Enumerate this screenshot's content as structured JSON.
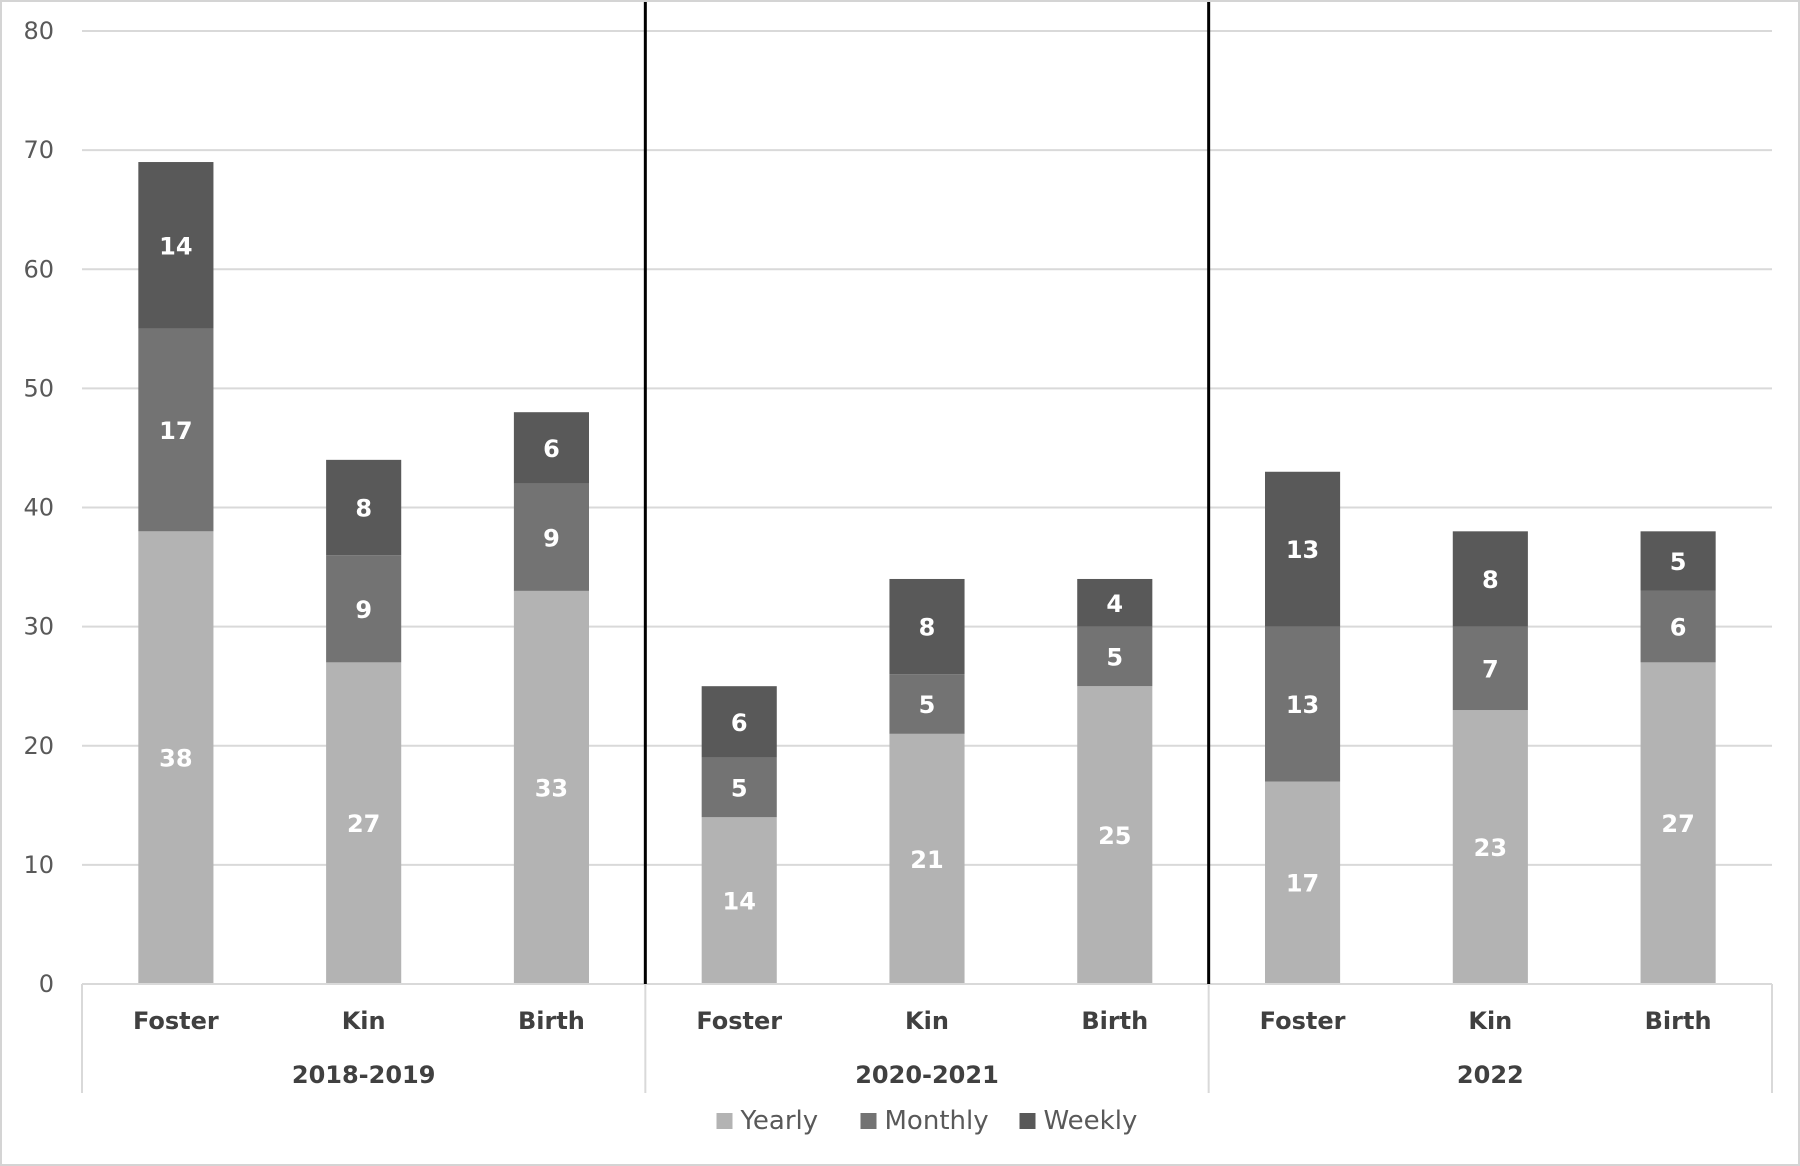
{
  "chart_data": {
    "type": "bar",
    "stacked": true,
    "groups": [
      {
        "label": "2018-2019",
        "categories": [
          "Foster",
          "Kin",
          "Birth"
        ]
      },
      {
        "label": "2020-2021",
        "categories": [
          "Foster",
          "Kin",
          "Birth"
        ]
      },
      {
        "label": "2022",
        "categories": [
          "Foster",
          "Kin",
          "Birth"
        ]
      }
    ],
    "series": [
      {
        "name": "Yearly",
        "color": "#b3b3b3",
        "values": [
          38,
          27,
          33,
          14,
          21,
          25,
          17,
          23,
          27
        ]
      },
      {
        "name": "Monthly",
        "color": "#737373",
        "values": [
          17,
          9,
          9,
          5,
          5,
          5,
          13,
          7,
          6
        ]
      },
      {
        "name": "Weekly",
        "color": "#595959",
        "values": [
          14,
          8,
          6,
          6,
          8,
          4,
          13,
          8,
          5
        ]
      }
    ],
    "ylim": [
      0,
      80
    ],
    "yticks": [
      0,
      10,
      20,
      30,
      40,
      50,
      60,
      70,
      80
    ],
    "grid": true,
    "legend": "bottom-center",
    "data_labels": true,
    "group_separators": "vertical lines between groups"
  }
}
